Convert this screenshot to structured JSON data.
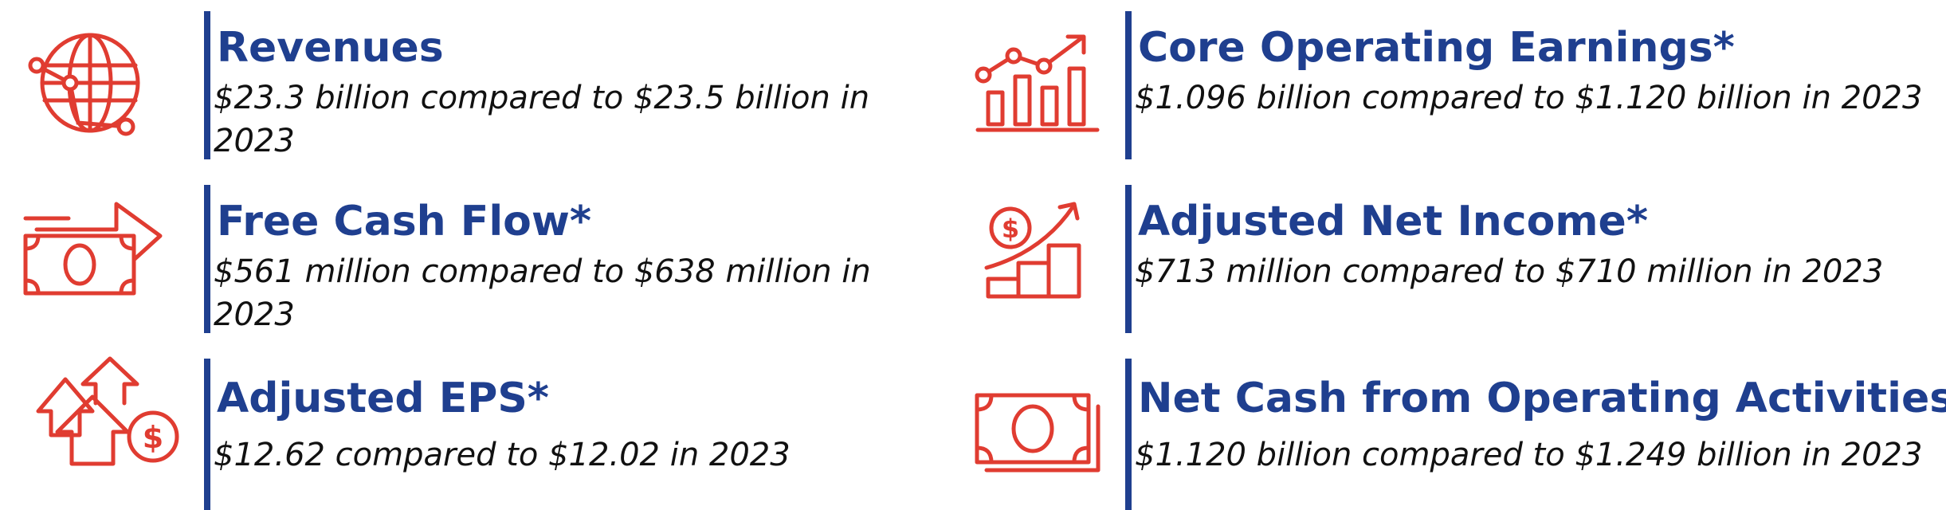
{
  "colors": {
    "accent_blue": "#1f3f8f",
    "icon_red": "#e03c31",
    "text": "#111111"
  },
  "highlights": [
    {
      "icon": "globe-network-icon",
      "title": "Revenues",
      "desc": "$23.3 billion compared to $23.5 billion in 2023"
    },
    {
      "icon": "growth-chart-icon",
      "title": "Core Operating Earnings*",
      "desc": "$1.096 billion compared to $1.120 billion in 2023"
    },
    {
      "icon": "cash-flow-arrow-icon",
      "title": "Free Cash Flow*",
      "desc": "$561 million compared to $638 million in 2023"
    },
    {
      "icon": "dollar-growth-steps-icon",
      "title": "Adjusted Net Income*",
      "desc": "$713 million compared to $710 million in 2023"
    },
    {
      "icon": "arrows-up-dollar-icon",
      "title": "Adjusted EPS*",
      "desc": "$12.62 compared to $12.02 in 2023"
    },
    {
      "icon": "banknote-stack-icon",
      "title": "Net Cash from Operating Activities",
      "desc": "$1.120 billion compared to $1.249 billion in 2023"
    }
  ]
}
